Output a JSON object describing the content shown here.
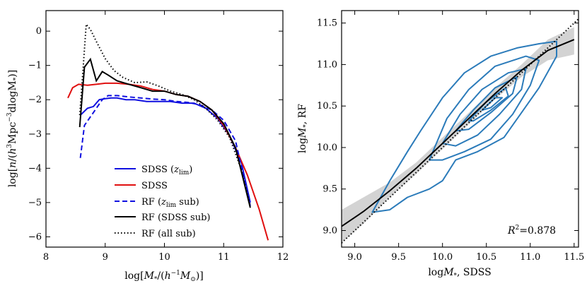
{
  "chart_data": [
    {
      "type": "line",
      "panel": "left",
      "xlabel": "log[M*/(h^-1 M⊙)]",
      "ylabel": "log[n/(h^3 Mpc^-3 dlogM*)]",
      "xlim": [
        8,
        12
      ],
      "ylim": [
        -6.3,
        0.6
      ],
      "xticks": [
        "8",
        "9",
        "10",
        "11",
        "12"
      ],
      "yticks": [
        "0",
        "−1",
        "−2",
        "−3",
        "−4",
        "−5",
        "−6"
      ],
      "xtick_values": [
        8,
        9,
        10,
        11,
        12
      ],
      "ytick_values": [
        0,
        -1,
        -2,
        -3,
        -4,
        -5,
        -6
      ],
      "legend_position": "lower-center",
      "series": [
        {
          "name": "SDSS (z_lim)",
          "legend_main": "SDSS (",
          "legend_sub": "lim",
          "legend_z": "z",
          "legend_tail": ")",
          "color": "#1010e0",
          "dash": "solid",
          "x": [
            8.58,
            8.7,
            8.8,
            8.9,
            9.0,
            9.1,
            9.2,
            9.35,
            9.5,
            9.7,
            9.9,
            10.1,
            10.3,
            10.5,
            10.7,
            10.9,
            11.1,
            11.3,
            11.45
          ],
          "y": [
            -2.45,
            -2.25,
            -2.2,
            -2.0,
            -1.97,
            -1.95,
            -1.95,
            -2.0,
            -2.0,
            -2.05,
            -2.05,
            -2.05,
            -2.1,
            -2.1,
            -2.25,
            -2.55,
            -3.05,
            -3.85,
            -5.0
          ]
        },
        {
          "name": "SDSS",
          "color": "#e01010",
          "dash": "solid",
          "x": [
            8.37,
            8.45,
            8.55,
            8.7,
            8.85,
            9.0,
            9.2,
            9.4,
            9.6,
            9.8,
            10.0,
            10.2,
            10.4,
            10.6,
            10.8,
            11.0,
            11.2,
            11.4,
            11.6,
            11.75
          ],
          "y": [
            -1.95,
            -1.65,
            -1.55,
            -1.58,
            -1.55,
            -1.52,
            -1.52,
            -1.55,
            -1.6,
            -1.7,
            -1.75,
            -1.85,
            -1.9,
            -2.05,
            -2.3,
            -2.75,
            -3.4,
            -4.2,
            -5.2,
            -6.1
          ]
        },
        {
          "name": "RF (z_lim sub)",
          "legend_main": "RF (",
          "legend_sub": "lim",
          "legend_z": "z",
          "legend_tail": " sub)",
          "color": "#1010e0",
          "dash": "dashed",
          "x": [
            8.58,
            8.65,
            8.75,
            8.85,
            8.95,
            9.05,
            9.2,
            9.4,
            9.6,
            9.8,
            10.0,
            10.2,
            10.4,
            10.6,
            10.8,
            11.0,
            11.2,
            11.45
          ],
          "y": [
            -3.7,
            -2.75,
            -2.5,
            -2.25,
            -2.0,
            -1.88,
            -1.88,
            -1.92,
            -1.95,
            -1.98,
            -2.0,
            -2.05,
            -2.08,
            -2.15,
            -2.3,
            -2.6,
            -3.2,
            -5.1
          ]
        },
        {
          "name": "RF (SDSS sub)",
          "color": "#000000",
          "dash": "solid",
          "x": [
            8.57,
            8.65,
            8.75,
            8.85,
            8.95,
            9.05,
            9.2,
            9.4,
            9.6,
            9.8,
            10.0,
            10.2,
            10.4,
            10.6,
            10.8,
            11.0,
            11.2,
            11.45
          ],
          "y": [
            -2.8,
            -1.05,
            -0.82,
            -1.45,
            -1.18,
            -1.28,
            -1.45,
            -1.55,
            -1.65,
            -1.75,
            -1.75,
            -1.85,
            -1.9,
            -2.05,
            -2.3,
            -2.7,
            -3.4,
            -5.15
          ]
        },
        {
          "name": "RF (all sub)",
          "color": "#000000",
          "dash": "dotted",
          "x": [
            8.57,
            8.63,
            8.68,
            8.75,
            8.85,
            9.0,
            9.15,
            9.3,
            9.5,
            9.7,
            9.9,
            10.1,
            10.3,
            10.5,
            10.7,
            10.9,
            11.1,
            11.3,
            11.45
          ],
          "y": [
            -2.45,
            -1.0,
            0.2,
            0.05,
            -0.3,
            -0.8,
            -1.15,
            -1.35,
            -1.5,
            -1.48,
            -1.6,
            -1.75,
            -1.85,
            -2.0,
            -2.25,
            -2.6,
            -3.1,
            -4.05,
            -5.1
          ]
        }
      ]
    },
    {
      "type": "scatter",
      "panel": "right",
      "xlabel": "log M*, SDSS",
      "ylabel": "log M*, RF",
      "xlim": [
        8.85,
        11.55
      ],
      "ylim": [
        8.8,
        11.65
      ],
      "xticks": [
        "9.0",
        "9.5",
        "10.0",
        "10.5",
        "11.0",
        "11.5"
      ],
      "yticks": [
        "9.0",
        "9.5",
        "10.0",
        "10.5",
        "11.0",
        "11.5"
      ],
      "xtick_values": [
        9.0,
        9.5,
        10.0,
        10.5,
        11.0,
        11.5
      ],
      "ytick_values": [
        9.0,
        9.5,
        10.0,
        10.5,
        11.0,
        11.5
      ],
      "annotation": {
        "prefix": "R",
        "exp": "2",
        "suffix": "=0.878"
      },
      "one_to_one_line": [
        [
          8.85,
          8.85
        ],
        [
          11.55,
          11.55
        ]
      ],
      "median": {
        "x": [
          8.85,
          9.1,
          9.4,
          9.7,
          10.0,
          10.3,
          10.6,
          10.9,
          11.2,
          11.5
        ],
        "y": [
          9.05,
          9.23,
          9.48,
          9.75,
          10.05,
          10.35,
          10.65,
          10.93,
          11.17,
          11.3
        ]
      },
      "band": {
        "x": [
          8.85,
          9.1,
          9.4,
          9.7,
          10.0,
          10.3,
          10.6,
          10.9,
          11.2,
          11.5
        ],
        "lower": [
          8.85,
          9.08,
          9.4,
          9.68,
          9.98,
          10.28,
          10.58,
          10.85,
          11.05,
          11.12
        ],
        "upper": [
          9.25,
          9.4,
          9.58,
          9.82,
          10.12,
          10.42,
          10.72,
          11.0,
          11.3,
          11.45
        ]
      },
      "contours": [
        {
          "level": 1,
          "points": [
            [
              9.2,
              9.22
            ],
            [
              9.4,
              9.6
            ],
            [
              9.6,
              9.95
            ],
            [
              9.75,
              10.2
            ],
            [
              10.0,
              10.6
            ],
            [
              10.25,
              10.9
            ],
            [
              10.55,
              11.1
            ],
            [
              10.85,
              11.2
            ],
            [
              11.1,
              11.25
            ],
            [
              11.3,
              11.28
            ],
            [
              11.3,
              11.1
            ],
            [
              11.1,
              10.72
            ],
            [
              10.9,
              10.42
            ],
            [
              10.7,
              10.12
            ],
            [
              10.4,
              9.95
            ],
            [
              10.15,
              9.85
            ],
            [
              10.0,
              9.6
            ],
            [
              9.85,
              9.5
            ],
            [
              9.6,
              9.4
            ],
            [
              9.4,
              9.25
            ],
            [
              9.2,
              9.22
            ]
          ]
        },
        {
          "level": 2,
          "points": [
            [
              9.85,
              9.85
            ],
            [
              10.05,
              10.35
            ],
            [
              10.3,
              10.7
            ],
            [
              10.6,
              10.98
            ],
            [
              10.95,
              11.1
            ],
            [
              11.1,
              11.05
            ],
            [
              11.0,
              10.75
            ],
            [
              10.8,
              10.4
            ],
            [
              10.55,
              10.1
            ],
            [
              10.25,
              9.95
            ],
            [
              10.0,
              9.85
            ],
            [
              9.85,
              9.85
            ]
          ]
        },
        {
          "level": 3,
          "points": [
            [
              10.0,
              10.05
            ],
            [
              10.2,
              10.4
            ],
            [
              10.45,
              10.7
            ],
            [
              10.75,
              10.9
            ],
            [
              10.95,
              10.95
            ],
            [
              10.9,
              10.7
            ],
            [
              10.65,
              10.4
            ],
            [
              10.4,
              10.15
            ],
            [
              10.15,
              10.02
            ],
            [
              10.0,
              10.05
            ]
          ]
        },
        {
          "level": 4,
          "points": [
            [
              10.15,
              10.2
            ],
            [
              10.35,
              10.45
            ],
            [
              10.6,
              10.72
            ],
            [
              10.85,
              10.85
            ],
            [
              10.8,
              10.65
            ],
            [
              10.55,
              10.42
            ],
            [
              10.3,
              10.22
            ],
            [
              10.15,
              10.2
            ]
          ]
        },
        {
          "level": 5,
          "points": [
            [
              10.3,
              10.32
            ],
            [
              10.5,
              10.55
            ],
            [
              10.72,
              10.72
            ],
            [
              10.75,
              10.62
            ],
            [
              10.55,
              10.45
            ],
            [
              10.35,
              10.32
            ],
            [
              10.3,
              10.32
            ]
          ]
        },
        {
          "level": 6,
          "points": [
            [
              10.45,
              10.45
            ],
            [
              10.6,
              10.6
            ],
            [
              10.68,
              10.6
            ],
            [
              10.55,
              10.48
            ],
            [
              10.45,
              10.45
            ]
          ]
        }
      ]
    }
  ],
  "colors": {
    "blue": "#1010e0",
    "red": "#e01010",
    "black": "#000000",
    "contour": "#2b7bba",
    "band": "#d3d3d3"
  }
}
